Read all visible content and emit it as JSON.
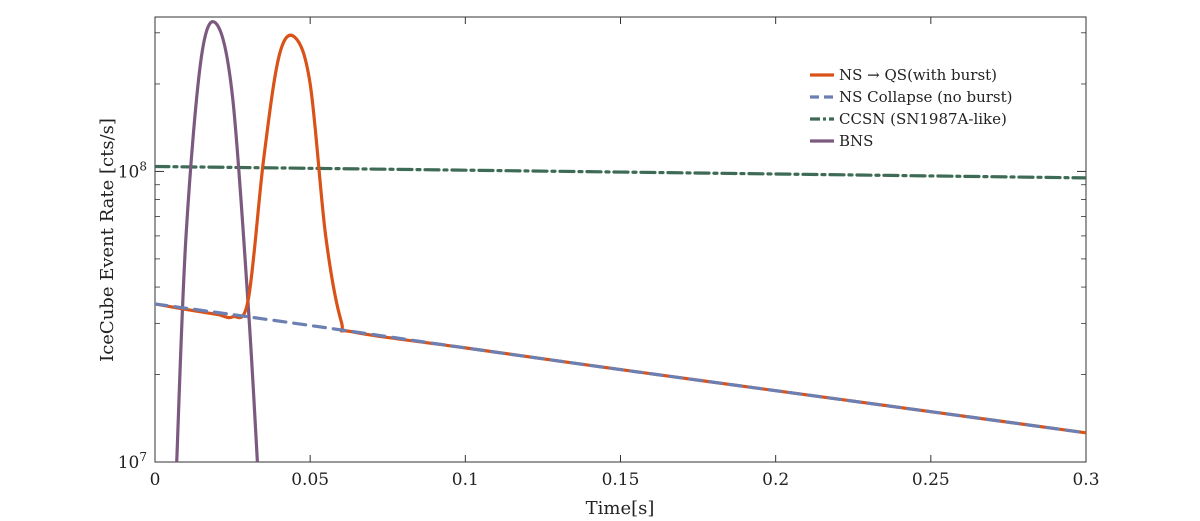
{
  "chart_data": {
    "type": "line",
    "xlabel": "Time[s]",
    "ylabel": "IceCube Event Rate [cts/s]",
    "xlim": [
      0,
      0.3
    ],
    "ylim": [
      10000000,
      340000000
    ],
    "yscale": "log",
    "grid": false,
    "legend_position": "top-right",
    "x_ticks": [
      {
        "value": 0,
        "label": "0"
      },
      {
        "value": 0.05,
        "label": "0.05"
      },
      {
        "value": 0.1,
        "label": "0.1"
      },
      {
        "value": 0.15,
        "label": "0.15"
      },
      {
        "value": 0.2,
        "label": "0.2"
      },
      {
        "value": 0.25,
        "label": "0.25"
      },
      {
        "value": 0.3,
        "label": "0.3"
      }
    ],
    "y_ticks": [
      {
        "value": 10000000,
        "base": "10",
        "exp": "7"
      },
      {
        "value": 100000000,
        "base": "10",
        "exp": "8"
      }
    ],
    "series": [
      {
        "name": "NS → QS(with burst)",
        "color": "#d95319",
        "style": "solid",
        "x": [
          0,
          0.01,
          0.02,
          0.025,
          0.03,
          0.035,
          0.04,
          0.045,
          0.05,
          0.055,
          0.06,
          0.064,
          0.1,
          0.15,
          0.2,
          0.25,
          0.3
        ],
        "y": [
          35000000,
          33500000,
          32200000,
          31600000,
          36000000,
          110000000,
          250000000,
          290000000,
          200000000,
          60000000,
          30500000,
          28000000,
          24700000,
          20800000,
          17600000,
          14900000,
          12600000
        ]
      },
      {
        "name": "NS Collapse (no burst)",
        "color": "#6b7fb3",
        "style": "dashed",
        "x": [
          0,
          0.05,
          0.1,
          0.15,
          0.2,
          0.25,
          0.3
        ],
        "y": [
          35000000,
          29500000,
          24700000,
          20800000,
          17600000,
          14900000,
          12600000
        ]
      },
      {
        "name": "CCSN (SN1987A-like)",
        "color": "#3e6b55",
        "style": "dashdot",
        "x": [
          0,
          0.05,
          0.1,
          0.15,
          0.2,
          0.25,
          0.3
        ],
        "y": [
          104000000,
          102500000,
          101000000,
          99500000,
          98000000,
          96500000,
          95000000
        ]
      },
      {
        "name": "BNS",
        "color": "#7c5a7f",
        "style": "solid",
        "x": [
          0.007,
          0.01,
          0.015,
          0.02,
          0.025,
          0.03,
          0.033
        ],
        "y": [
          10000000,
          60000000,
          250000000,
          320000000,
          180000000,
          35000000,
          10000000
        ]
      }
    ]
  }
}
